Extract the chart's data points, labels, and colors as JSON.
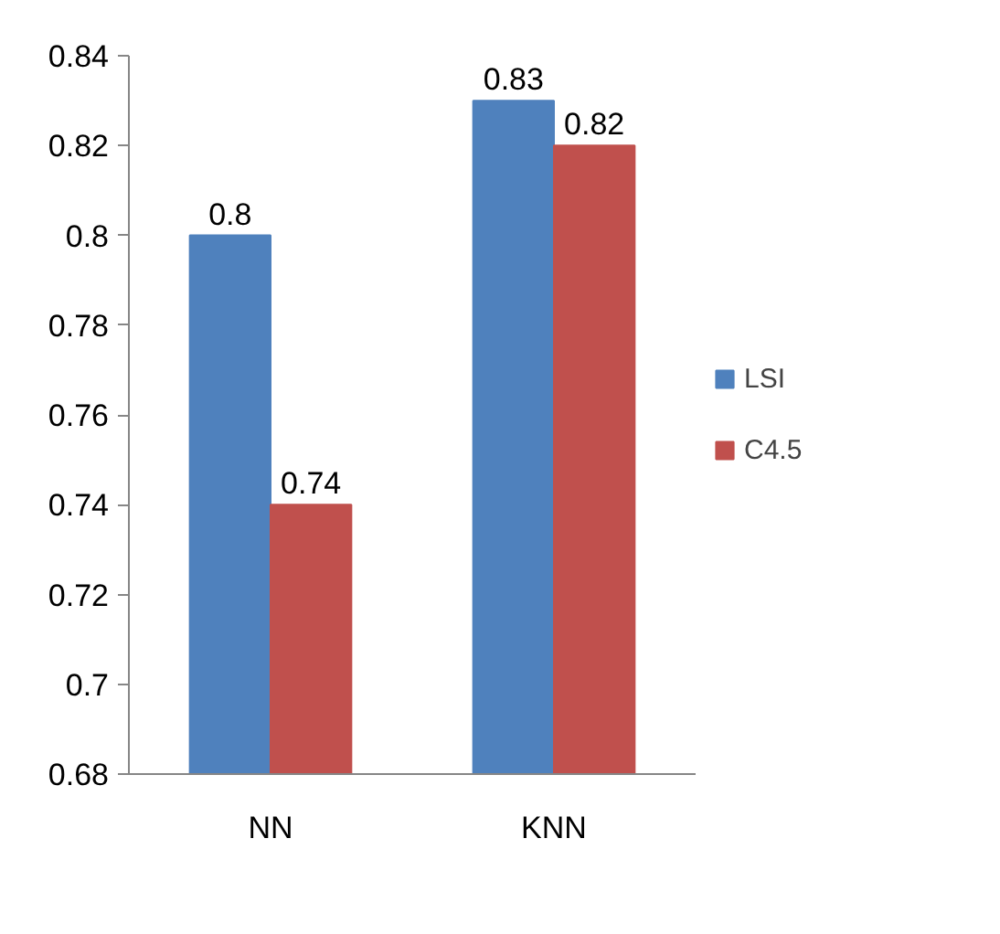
{
  "chart_data": {
    "type": "bar",
    "categories": [
      "NN",
      "KNN"
    ],
    "series": [
      {
        "name": "LSI",
        "color": "#4f81bd",
        "values": [
          0.8,
          0.83
        ]
      },
      {
        "name": "C4.5",
        "color": "#c0504d",
        "values": [
          0.74,
          0.82
        ]
      }
    ],
    "ylim": [
      0.68,
      0.84
    ],
    "yticks": [
      0.68,
      0.7,
      0.72,
      0.74,
      0.76,
      0.78,
      0.8,
      0.82,
      0.84
    ],
    "data_labels": true,
    "grid": false,
    "legend": "right"
  }
}
